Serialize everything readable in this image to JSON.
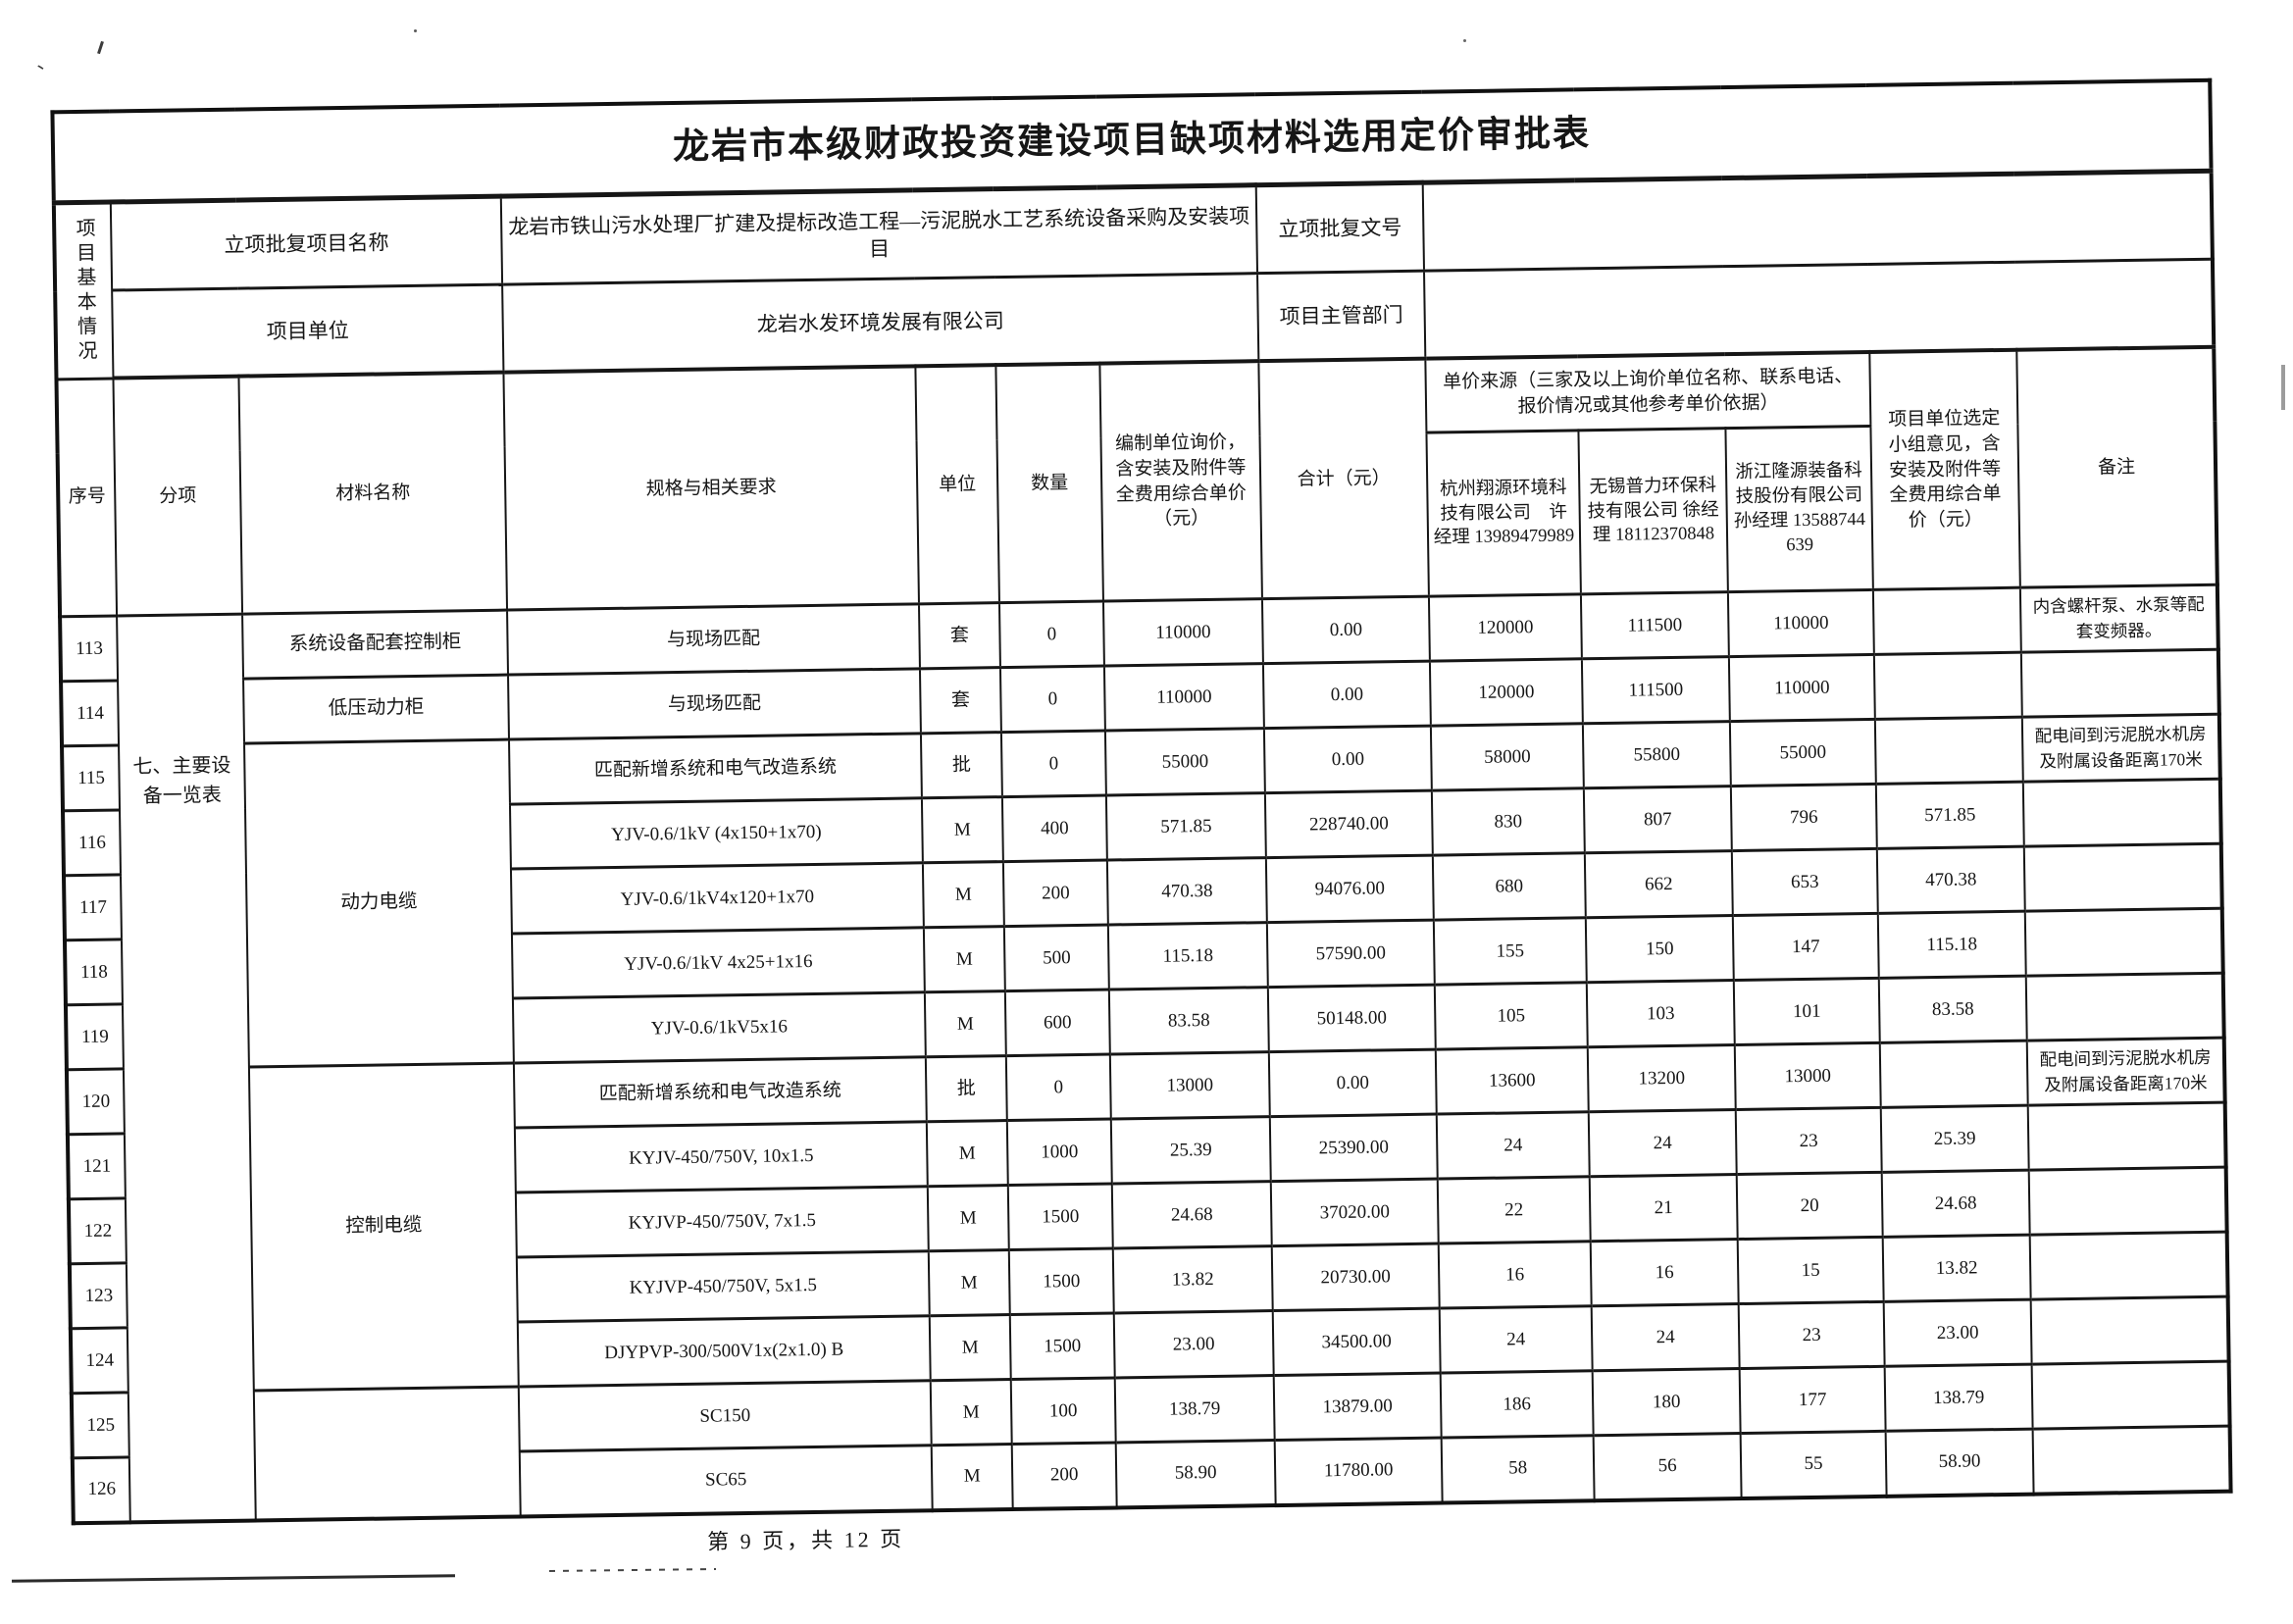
{
  "colors": {
    "paper": "#ffffff",
    "ink": "#161616",
    "border": "#101010"
  },
  "title": "龙岩市本级财政投资建设项目缺项材料选用定价审批表",
  "info": {
    "section_label": "项目基本情况",
    "row1": {
      "label": "立项批复项目名称",
      "value": "龙岩市铁山污水处理厂扩建及提标改造工程—污泥脱水工艺系统设备采购及安装项目",
      "label2": "立项批复文号",
      "value2": ""
    },
    "row2": {
      "label": "项目单位",
      "value": "龙岩水发环境发展有限公司",
      "label2": "项目主管部门",
      "value2": ""
    }
  },
  "table": {
    "headers": {
      "seq": "序号",
      "subitem": "分项",
      "material": "材料名称",
      "spec": "规格与相关要求",
      "unit": "单位",
      "qty": "数量",
      "price": "编制单位询价，含安装及附件等全费用综合单价（元）",
      "total": "合计（元）",
      "source": "单价来源（三家及以上询价单位名称、联系电话、报价情况或其他参考单价依据）",
      "vendor1": "杭州翔源环境科技有限公司　许经理 13989479989",
      "vendor2": "无锡普力环保科技有限公司 徐经理 18112370848",
      "vendor3": "浙江隆源装备科技股份有限公司 孙经理 13588744639",
      "selected": "项目单位选定小组意见，含安装及附件等全费用综合单价（元）",
      "remark": "备注"
    },
    "subitem_label": "七、主要设备一览表",
    "rows": [
      {
        "seq": "113",
        "material": {
          "text": "系统设备配套控制柜",
          "span": 1
        },
        "spec": "与现场匹配",
        "unit": "套",
        "qty": "0",
        "price": "110000",
        "total": "0.00",
        "v1": "120000",
        "v2": "111500",
        "v3": "110000",
        "sel": "",
        "remark": "内含螺杆泵、水泵等配套变频器。"
      },
      {
        "seq": "114",
        "material": {
          "text": "低压动力柜",
          "span": 1
        },
        "spec": "与现场匹配",
        "unit": "套",
        "qty": "0",
        "price": "110000",
        "total": "0.00",
        "v1": "120000",
        "v2": "111500",
        "v3": "110000",
        "sel": "",
        "remark": ""
      },
      {
        "seq": "115",
        "material": {
          "text": "动力电缆",
          "span": 5
        },
        "spec": "匹配新增系统和电气改造系统",
        "unit": "批",
        "qty": "0",
        "price": "55000",
        "total": "0.00",
        "v1": "58000",
        "v2": "55800",
        "v3": "55000",
        "sel": "",
        "remark": "配电间到污泥脱水机房及附属设备距离170米"
      },
      {
        "seq": "116",
        "material": null,
        "spec": "YJV-0.6/1kV (4x150+1x70)",
        "unit": "M",
        "qty": "400",
        "price": "571.85",
        "total": "228740.00",
        "v1": "830",
        "v2": "807",
        "v3": "796",
        "sel": "571.85",
        "remark": ""
      },
      {
        "seq": "117",
        "material": null,
        "spec": "YJV-0.6/1kV4x120+1x70",
        "unit": "M",
        "qty": "200",
        "price": "470.38",
        "total": "94076.00",
        "v1": "680",
        "v2": "662",
        "v3": "653",
        "sel": "470.38",
        "remark": ""
      },
      {
        "seq": "118",
        "material": null,
        "spec": "YJV-0.6/1kV 4x25+1x16",
        "unit": "M",
        "qty": "500",
        "price": "115.18",
        "total": "57590.00",
        "v1": "155",
        "v2": "150",
        "v3": "147",
        "sel": "115.18",
        "remark": ""
      },
      {
        "seq": "119",
        "material": null,
        "spec": "YJV-0.6/1kV5x16",
        "unit": "M",
        "qty": "600",
        "price": "83.58",
        "total": "50148.00",
        "v1": "105",
        "v2": "103",
        "v3": "101",
        "sel": "83.58",
        "remark": ""
      },
      {
        "seq": "120",
        "material": {
          "text": "控制电缆",
          "span": 5
        },
        "spec": "匹配新增系统和电气改造系统",
        "unit": "批",
        "qty": "0",
        "price": "13000",
        "total": "0.00",
        "v1": "13600",
        "v2": "13200",
        "v3": "13000",
        "sel": "",
        "remark": "配电间到污泥脱水机房及附属设备距离170米"
      },
      {
        "seq": "121",
        "material": null,
        "spec": "KYJV-450/750V, 10x1.5",
        "unit": "M",
        "qty": "1000",
        "price": "25.39",
        "total": "25390.00",
        "v1": "24",
        "v2": "24",
        "v3": "23",
        "sel": "25.39",
        "remark": ""
      },
      {
        "seq": "122",
        "material": null,
        "spec": "KYJVP-450/750V, 7x1.5",
        "unit": "M",
        "qty": "1500",
        "price": "24.68",
        "total": "37020.00",
        "v1": "22",
        "v2": "21",
        "v3": "20",
        "sel": "24.68",
        "remark": ""
      },
      {
        "seq": "123",
        "material": null,
        "spec": "KYJVP-450/750V, 5x1.5",
        "unit": "M",
        "qty": "1500",
        "price": "13.82",
        "total": "20730.00",
        "v1": "16",
        "v2": "16",
        "v3": "15",
        "sel": "13.82",
        "remark": ""
      },
      {
        "seq": "124",
        "material": null,
        "spec": "DJYPVP-300/500V1x(2x1.0) B",
        "unit": "M",
        "qty": "1500",
        "price": "23.00",
        "total": "34500.00",
        "v1": "24",
        "v2": "24",
        "v3": "23",
        "sel": "23.00",
        "remark": ""
      },
      {
        "seq": "125",
        "material": {
          "text": "",
          "span": 2
        },
        "spec": "SC150",
        "unit": "M",
        "qty": "100",
        "price": "138.79",
        "total": "13879.00",
        "v1": "186",
        "v2": "180",
        "v3": "177",
        "sel": "138.79",
        "remark": ""
      },
      {
        "seq": "126",
        "material": null,
        "spec": "SC65",
        "unit": "M",
        "qty": "200",
        "price": "58.90",
        "total": "11780.00",
        "v1": "58",
        "v2": "56",
        "v3": "55",
        "sel": "58.90",
        "remark": ""
      }
    ]
  },
  "footer": "第 9 页，共 12 页"
}
